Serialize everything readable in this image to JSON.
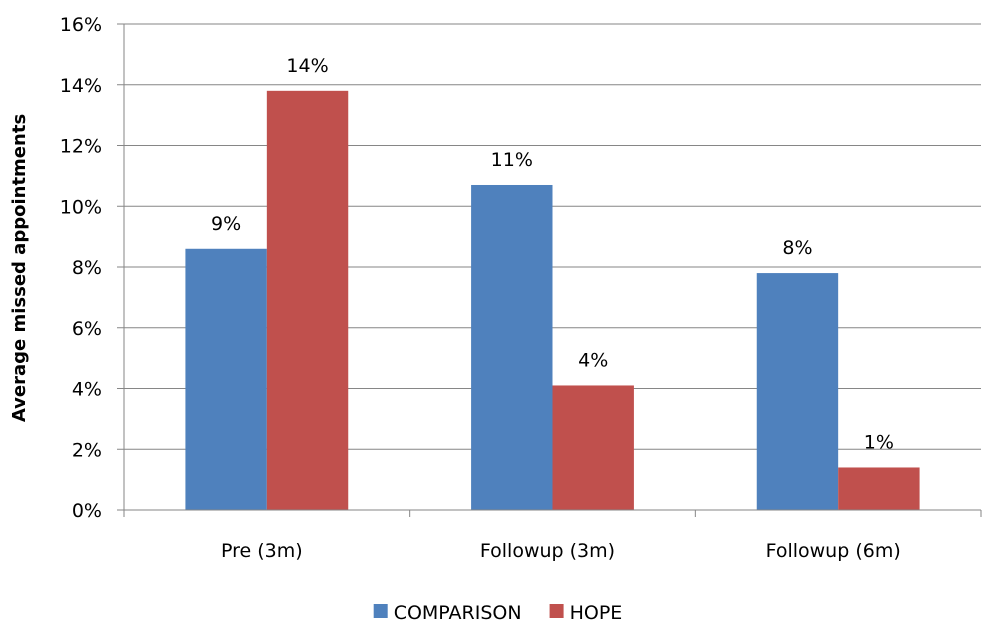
{
  "chart_data": {
    "type": "bar",
    "title": "",
    "xlabel": "",
    "ylabel": "Average missed appointments",
    "categories": [
      "Pre (3m)",
      "Followup (3m)",
      "Followup (6m)"
    ],
    "series": [
      {
        "name": "COMPARISON",
        "color": "#4F81BD",
        "values": [
          8.6,
          10.7,
          7.8
        ],
        "labels": [
          "9%",
          "11%",
          "8%"
        ]
      },
      {
        "name": "HOPE",
        "color": "#C0504D",
        "values": [
          13.8,
          4.1,
          1.4
        ],
        "labels": [
          "14%",
          "4%",
          "1%"
        ]
      }
    ],
    "ylim": [
      0,
      16
    ],
    "yticks": [
      0,
      2,
      4,
      6,
      8,
      10,
      12,
      14,
      16
    ],
    "ytick_labels": [
      "0%",
      "2%",
      "4%",
      "6%",
      "8%",
      "10%",
      "12%",
      "14%",
      "16%"
    ],
    "grid": true,
    "legend": "bottom-center"
  }
}
